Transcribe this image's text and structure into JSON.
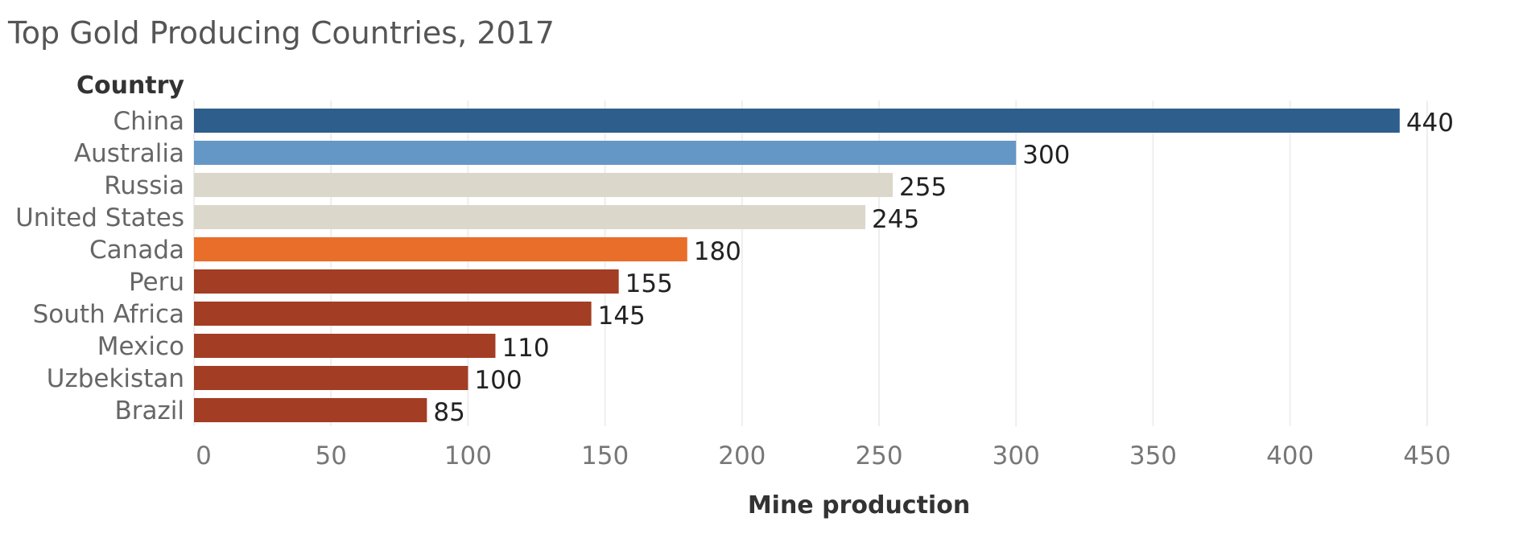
{
  "chart_data": {
    "type": "bar",
    "orientation": "horizontal",
    "title": "Top Gold Producing Countries, 2017",
    "row_header": "Country",
    "xlabel": "Mine production",
    "categories": [
      "China",
      "Australia",
      "Russia",
      "United States",
      "Canada",
      "Peru",
      "South Africa",
      "Mexico",
      "Uzbekistan",
      "Brazil"
    ],
    "values": [
      440,
      300,
      255,
      245,
      180,
      155,
      145,
      110,
      100,
      85
    ],
    "colors": [
      "#2e5e8c",
      "#6497c5",
      "#dcd7cb",
      "#dcd7cb",
      "#e86e2a",
      "#a33d23",
      "#a33d23",
      "#a33d23",
      "#a33d23",
      "#a33d23"
    ],
    "xlim": [
      0,
      485
    ],
    "xticks": [
      0,
      50,
      100,
      150,
      200,
      250,
      300,
      350,
      400,
      450
    ],
    "grid": true,
    "data_labels": true
  }
}
